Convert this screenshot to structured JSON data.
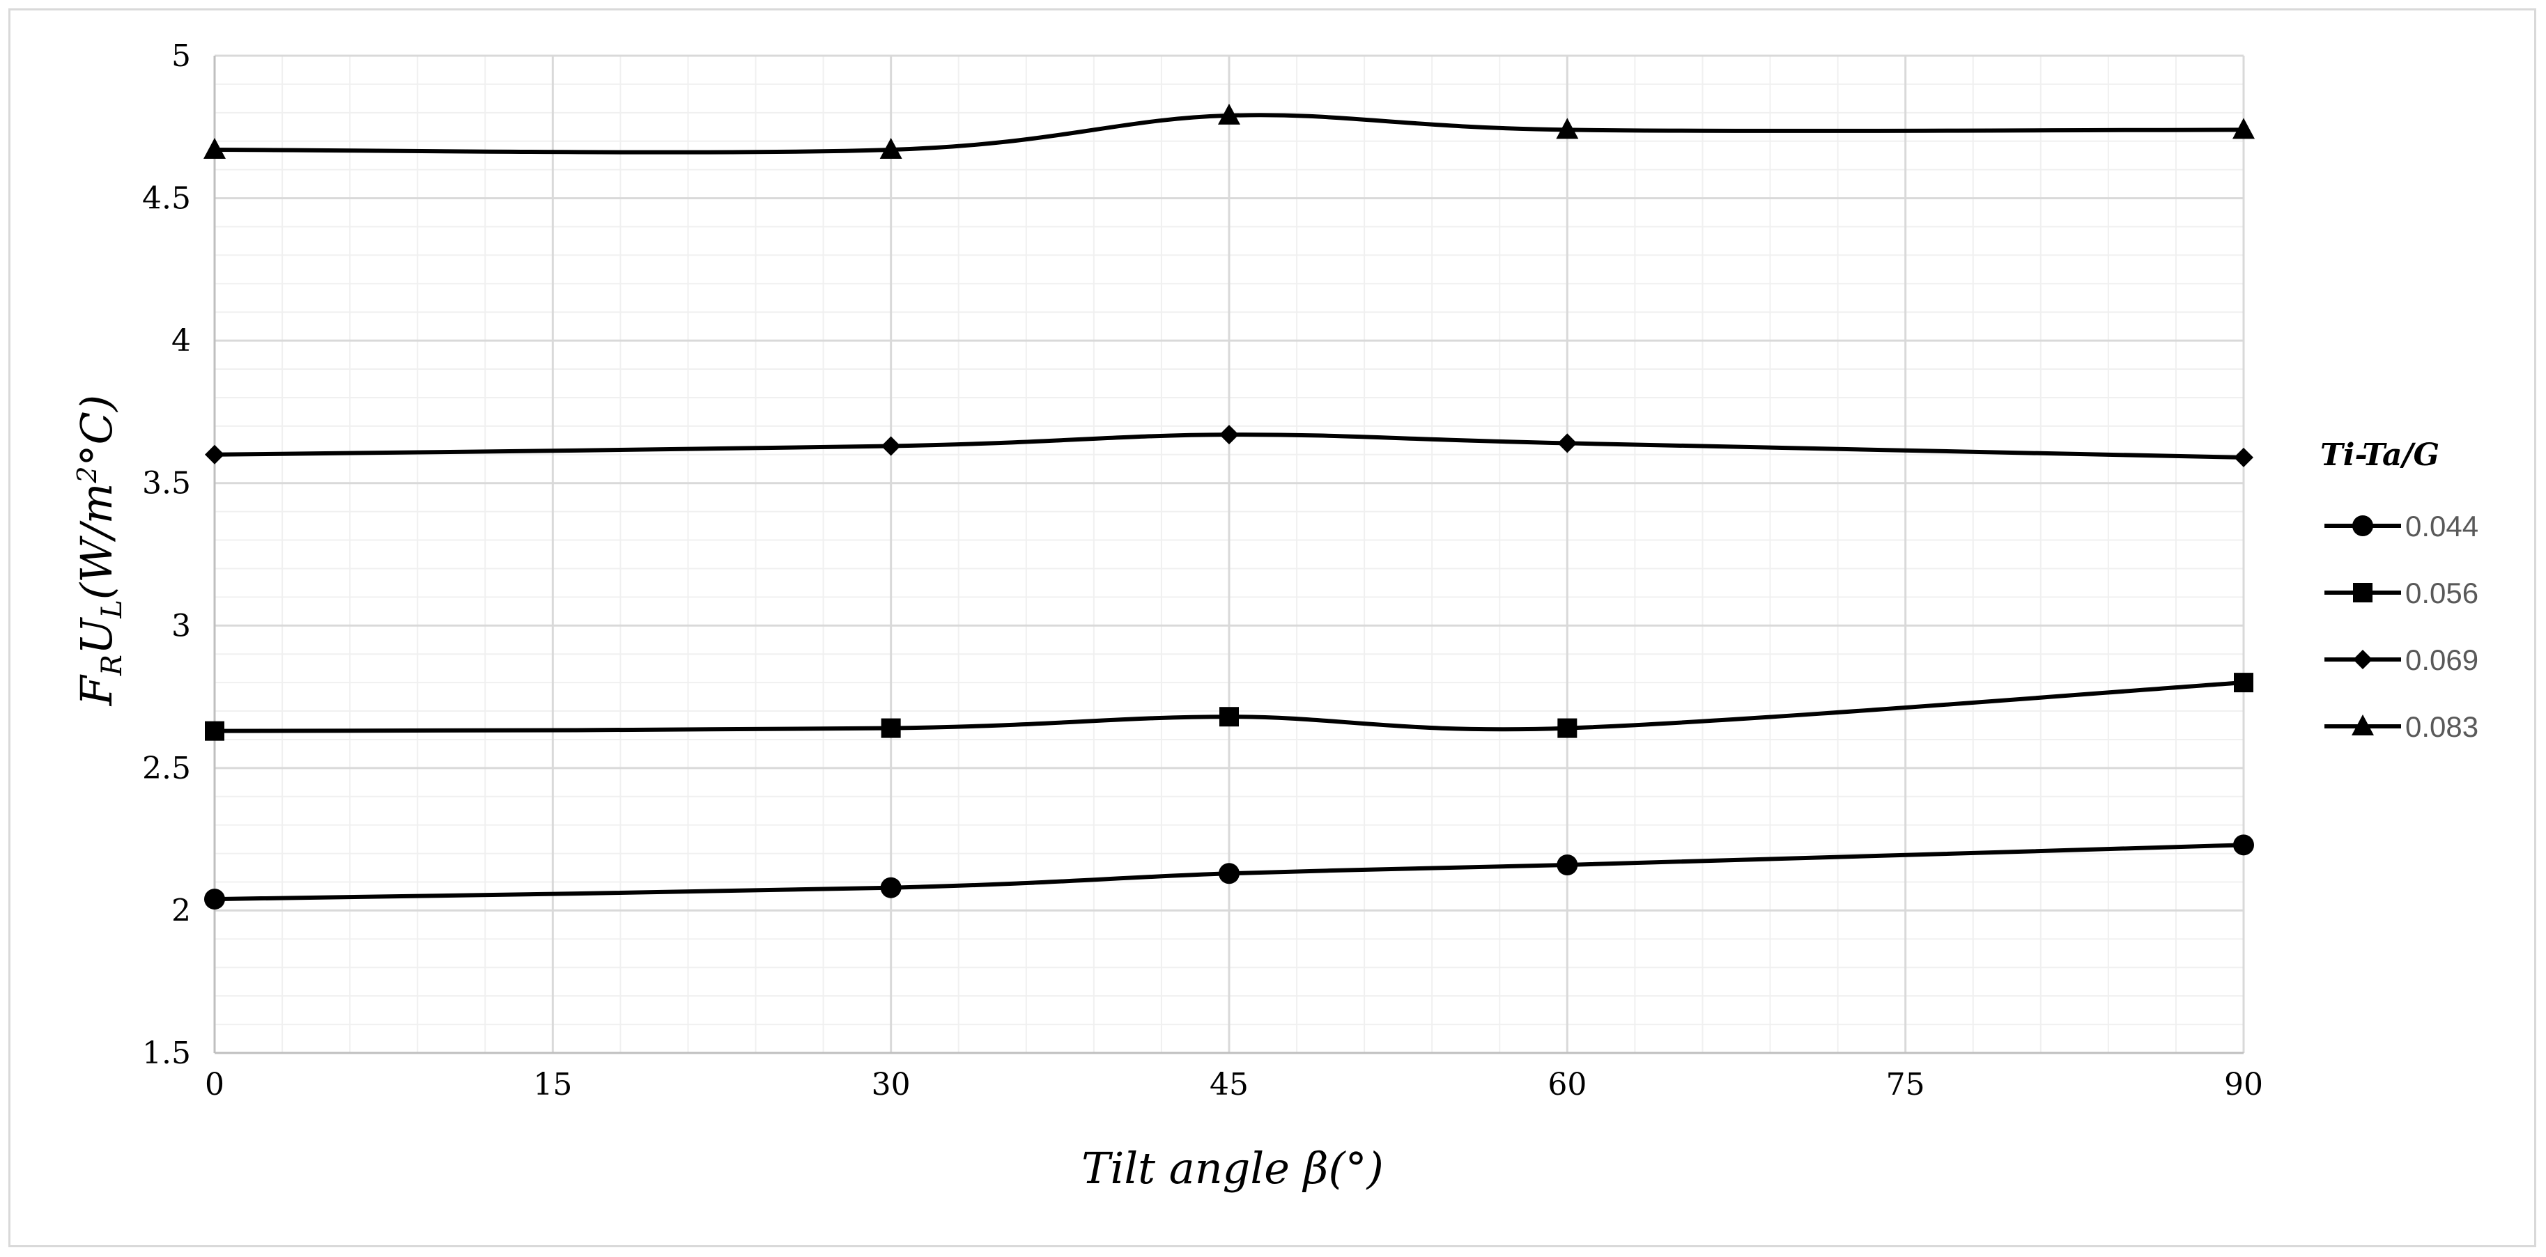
{
  "chart_data": {
    "type": "line",
    "xlabel": "Tilt angle β(°)",
    "ylabel_parts": {
      "main1": "F",
      "sub1": "R",
      "main2": "U",
      "sub2": "L",
      "unit": "(W/m",
      "sup": "2",
      "unit2": "°C)"
    },
    "xlim": [
      0,
      90
    ],
    "ylim": [
      1.5,
      5
    ],
    "x_ticks": [
      0,
      15,
      30,
      45,
      60,
      75,
      90
    ],
    "x_tick_labels": [
      "0",
      "15",
      "30",
      "45",
      "60",
      "75",
      "90"
    ],
    "y_ticks": [
      1.5,
      2,
      2.5,
      3,
      3.5,
      4,
      4.5,
      5
    ],
    "y_tick_labels": [
      "1.5",
      "2",
      "2.5",
      "3",
      "3.5",
      "4",
      "4.5",
      "5"
    ],
    "grid": true,
    "legend_title": "Ti-Ta/G",
    "legend_position": "right",
    "series": [
      {
        "name": "0.044",
        "marker": "circle",
        "x": [
          0,
          30,
          45,
          60,
          90
        ],
        "values": [
          2.04,
          2.08,
          2.13,
          2.16,
          2.23
        ]
      },
      {
        "name": "0.056",
        "marker": "square",
        "x": [
          0,
          30,
          45,
          60,
          90
        ],
        "values": [
          2.63,
          2.64,
          2.68,
          2.64,
          2.8
        ]
      },
      {
        "name": "0.069",
        "marker": "diamond",
        "x": [
          0,
          30,
          45,
          60,
          90
        ],
        "values": [
          3.6,
          3.63,
          3.67,
          3.64,
          3.59
        ]
      },
      {
        "name": "0.083",
        "marker": "triangle",
        "x": [
          0,
          30,
          45,
          60,
          90
        ],
        "values": [
          4.67,
          4.67,
          4.79,
          4.74,
          4.74
        ]
      }
    ],
    "line_color": "#000000",
    "major_grid_color": "#d9d9d9",
    "minor_grid_color": "#f0f0f0"
  }
}
